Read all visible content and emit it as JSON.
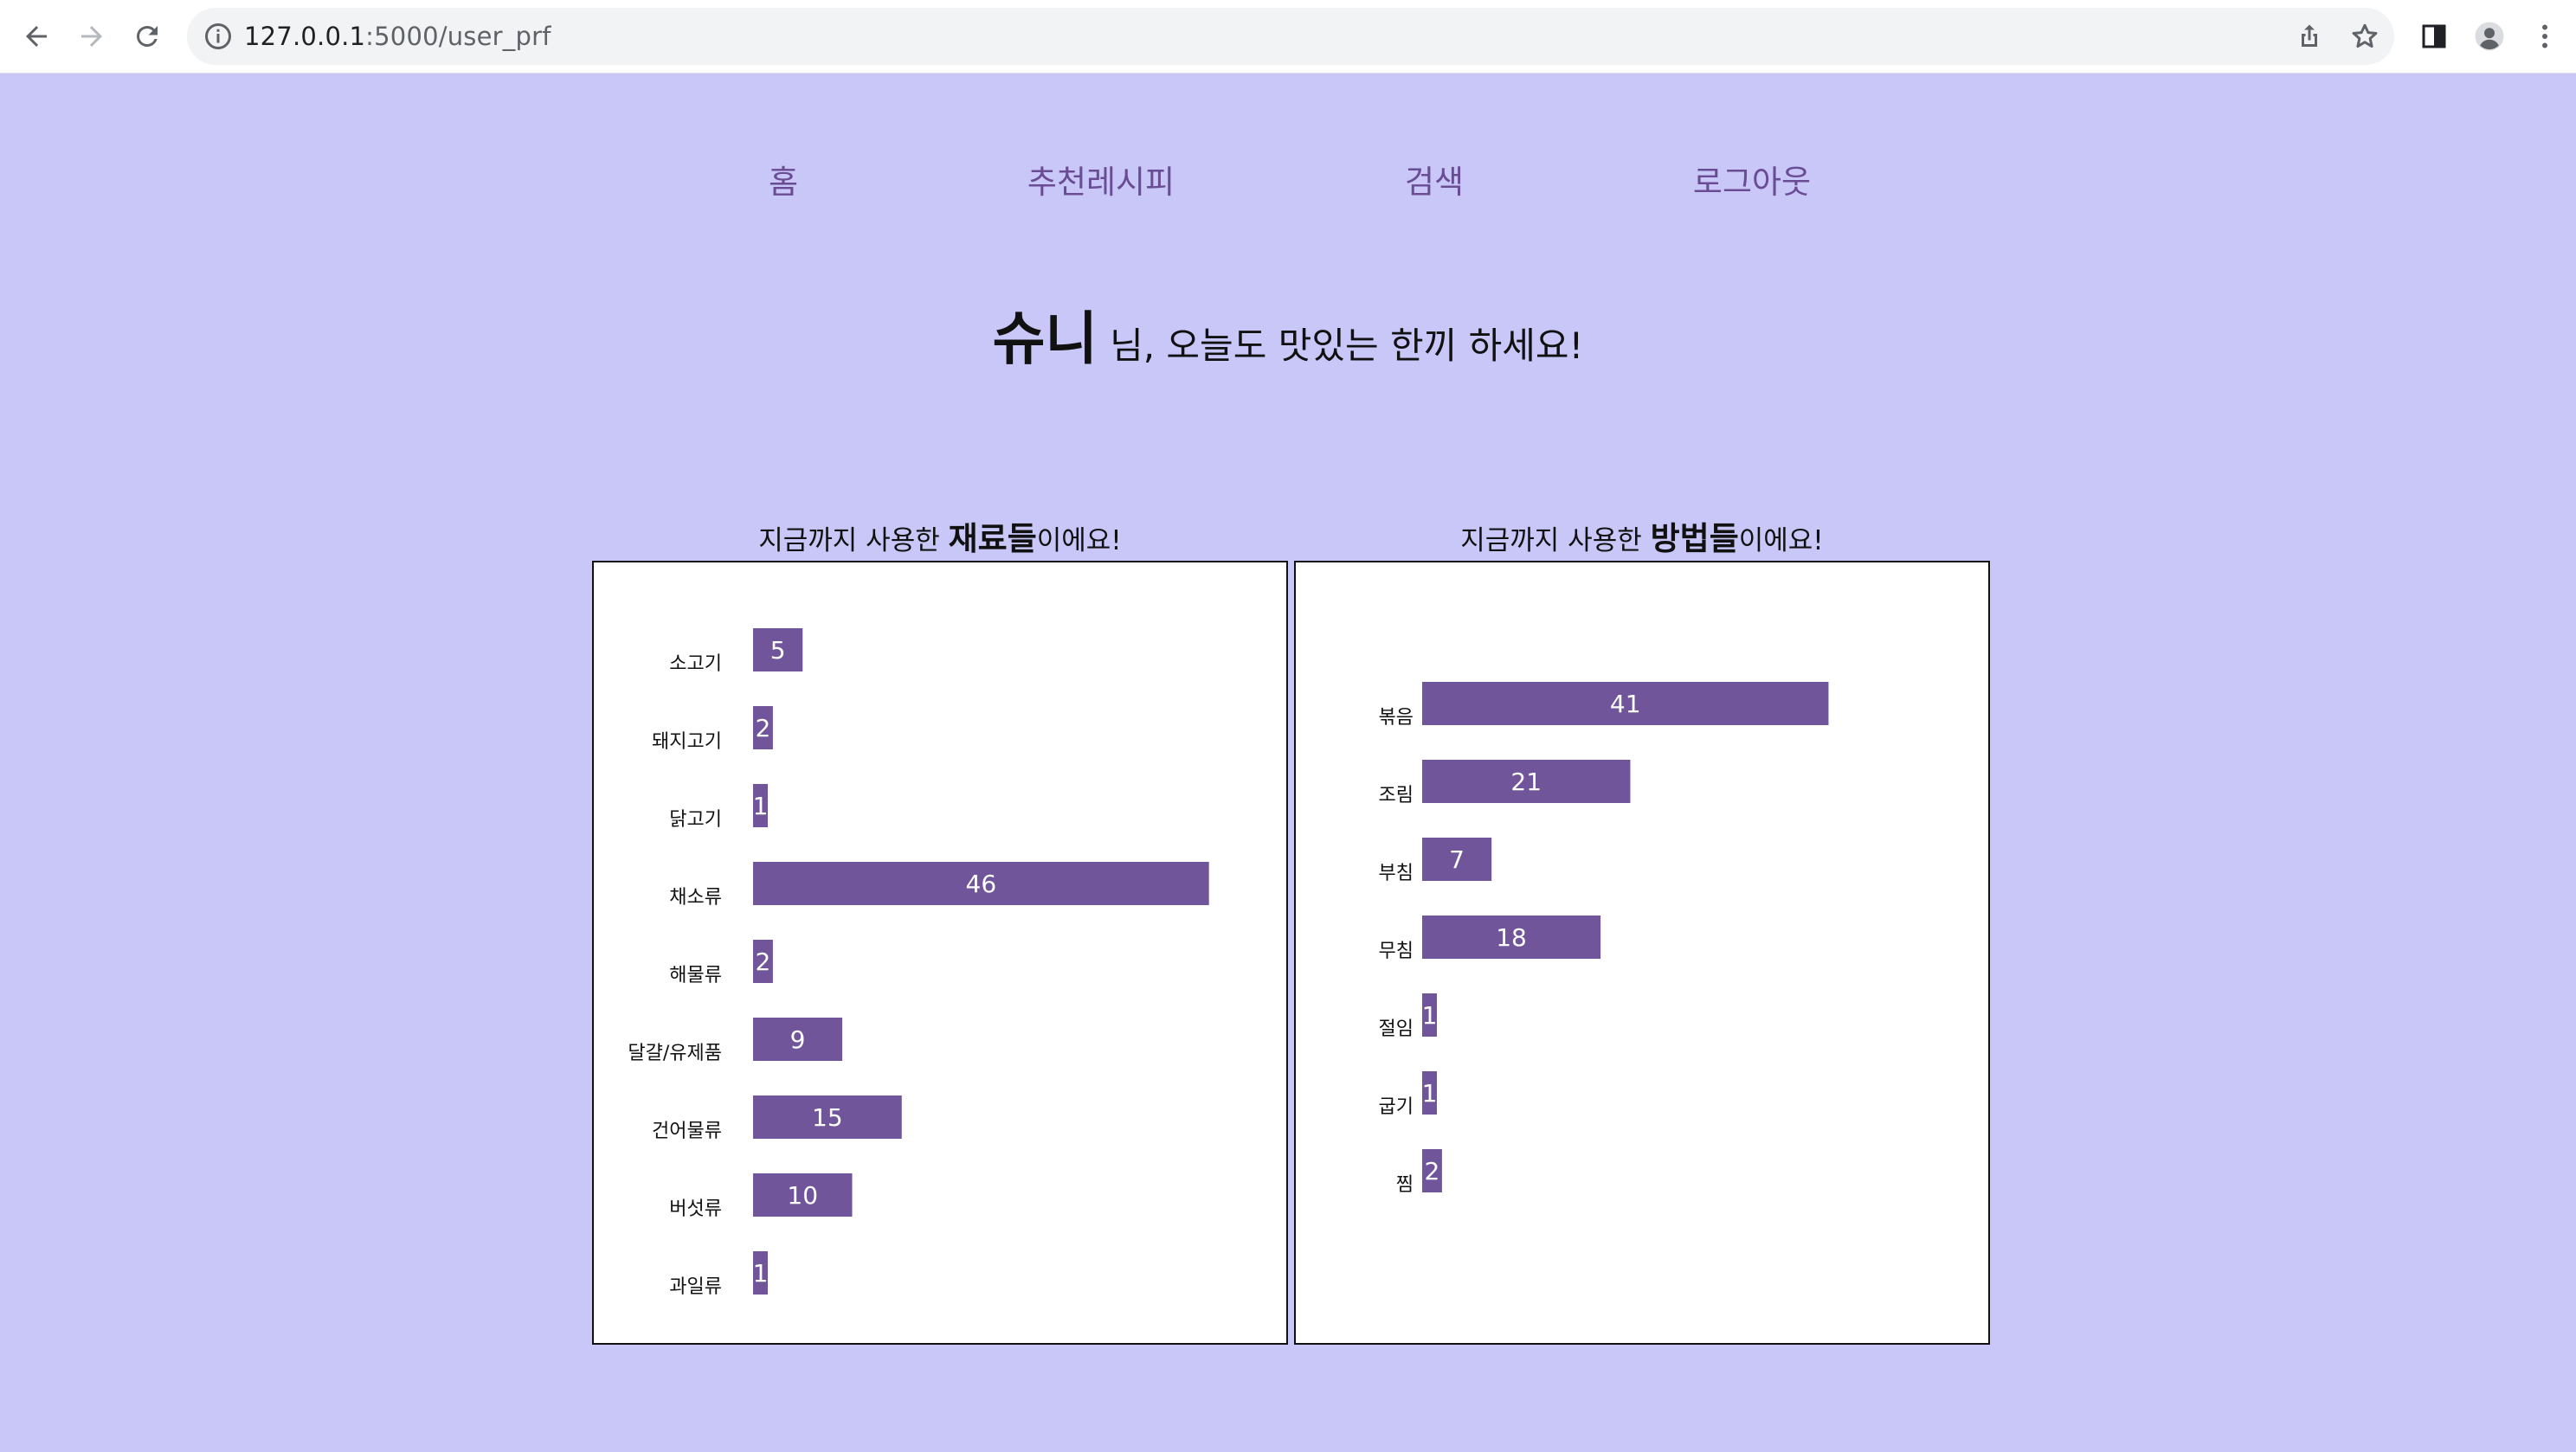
{
  "browser": {
    "url_host": "127.0.0.1",
    "url_rest": ":5000/user_prf"
  },
  "nav": {
    "items": [
      {
        "label": "홈"
      },
      {
        "label": "추천레시피"
      },
      {
        "label": "검색"
      },
      {
        "label": "로그아웃"
      }
    ]
  },
  "greeting": {
    "name": "슈니",
    "message": "님, 오늘도 맛있는 한끼 하세요!"
  },
  "ingredients_chart": {
    "title_prefix": "지금까지 사용한 ",
    "title_emphasis": "재료들",
    "title_suffix": "이에요!"
  },
  "methods_chart": {
    "title_prefix": "지금까지 사용한 ",
    "title_emphasis": "방법들",
    "title_suffix": "이에요!"
  },
  "colors": {
    "background": "#c8c7f7",
    "bar": "#71559b",
    "nav_text": "#6a4c94"
  },
  "chart_data": [
    {
      "type": "bar",
      "orientation": "horizontal",
      "categories": [
        "소고기",
        "돼지고기",
        "닭고기",
        "채소류",
        "해물류",
        "달걀/유제품",
        "건어물류",
        "버섯류",
        "과일류"
      ],
      "values": [
        5,
        2,
        1,
        46,
        2,
        9,
        15,
        10,
        1
      ],
      "xlim": [
        0,
        50
      ]
    },
    {
      "type": "bar",
      "orientation": "horizontal",
      "categories": [
        "볶음",
        "조림",
        "부침",
        "무침",
        "절임",
        "굽기",
        "찜"
      ],
      "values": [
        41,
        21,
        7,
        18,
        1,
        1,
        2
      ],
      "xlim": [
        0,
        50
      ]
    }
  ]
}
